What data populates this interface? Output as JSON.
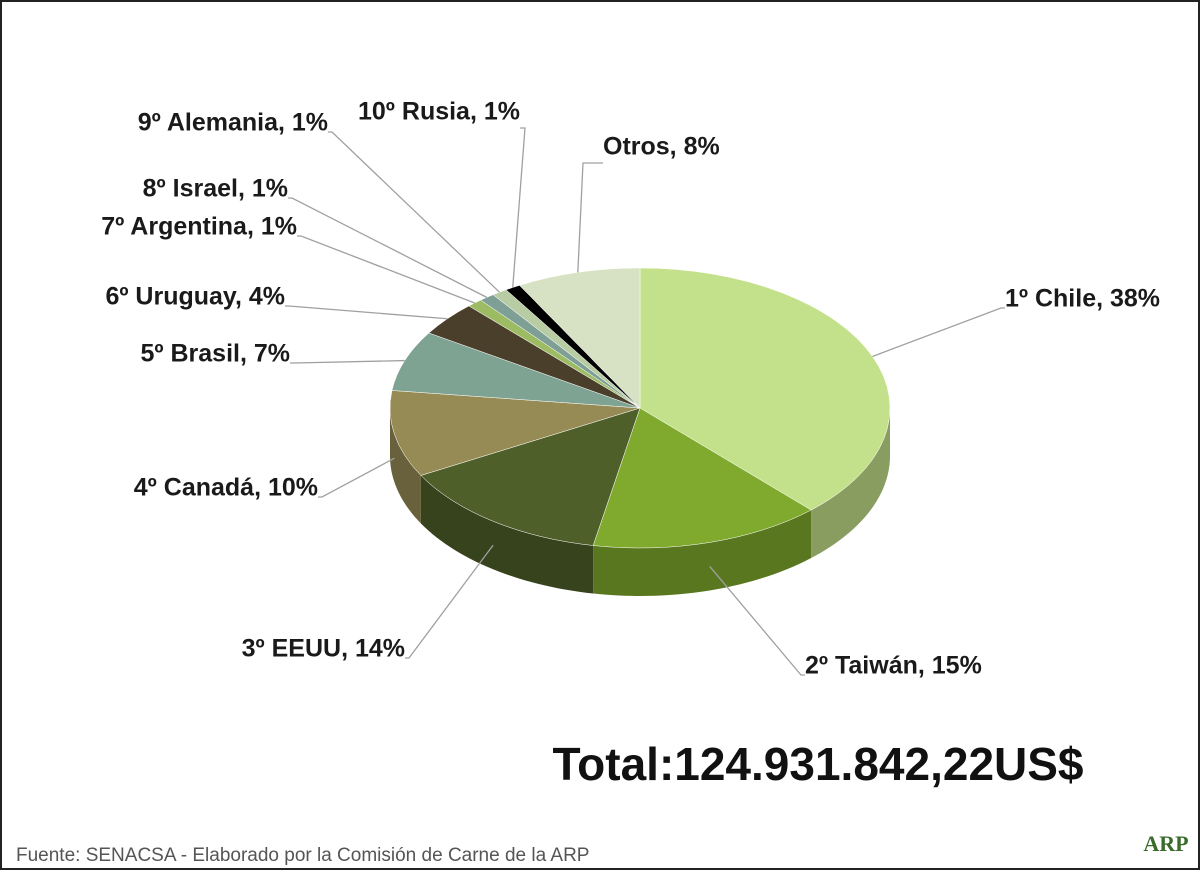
{
  "chart_data": {
    "type": "pie",
    "value_labels": [
      "1º Chile, 38%",
      "2º Taiwán, 15%",
      "3º EEUU, 14%",
      "4º Canadá, 10%",
      "5º Brasil, 7%",
      "6º Uruguay, 4%",
      "7º Argentina, 1%",
      "8º Israel, 1%",
      "9º Alemania, 1%",
      "10º Rusia, 1%",
      "Otros, 8%"
    ],
    "values": [
      38,
      15,
      14,
      10,
      7,
      4,
      1,
      1,
      1,
      1,
      8
    ],
    "colors": [
      "#c3e08a",
      "#7faa2d",
      "#4e5f2a",
      "#968b55",
      "#7fa393",
      "#4a3f2a",
      "#9dbb62",
      "#7d9f96",
      "#b8cca3",
      "#000000",
      "#d6e2c3"
    ],
    "annotation": "Total:124.931.842,22US$",
    "source": "Fuente: SENACSA - Elaborado por la Comisión de Carne de la ARP",
    "logo": "ARP"
  }
}
